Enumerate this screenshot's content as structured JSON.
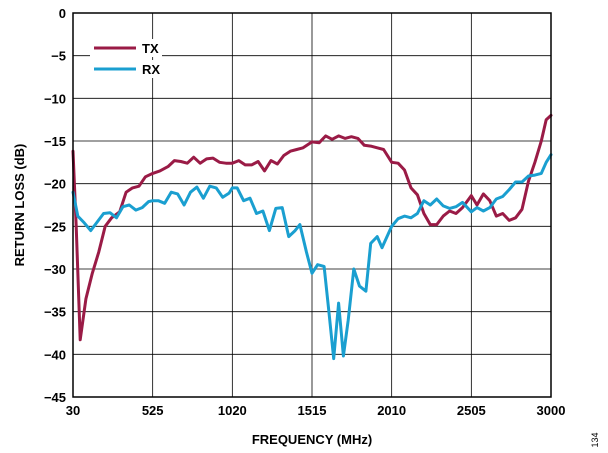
{
  "figure_id": "134",
  "chart_data": {
    "type": "line",
    "title": "",
    "xlabel": "FREQUENCY (MHz)",
    "ylabel": "RETURN LOSS (dB)",
    "xlim": [
      30,
      3000
    ],
    "ylim": [
      -45,
      0
    ],
    "x_ticks": [
      30,
      525,
      1020,
      1515,
      2010,
      2505,
      3000
    ],
    "y_ticks": [
      0,
      -5,
      -10,
      -15,
      -20,
      -25,
      -30,
      -35,
      -40,
      -45
    ],
    "grid": true,
    "legend_position": "top-left",
    "series": [
      {
        "name": "TX",
        "color": "#9a1b46",
        "points": [
          [
            30,
            -16.2
          ],
          [
            50,
            -25
          ],
          [
            75,
            -38.3
          ],
          [
            110,
            -33.5
          ],
          [
            150,
            -30.5
          ],
          [
            190,
            -28
          ],
          [
            230,
            -25
          ],
          [
            270,
            -24
          ],
          [
            320,
            -23.3
          ],
          [
            360,
            -21
          ],
          [
            400,
            -20.5
          ],
          [
            440,
            -20.3
          ],
          [
            480,
            -19.2
          ],
          [
            525,
            -18.8
          ],
          [
            570,
            -18.5
          ],
          [
            620,
            -18
          ],
          [
            660,
            -17.3
          ],
          [
            700,
            -17.4
          ],
          [
            740,
            -17.6
          ],
          [
            780,
            -16.9
          ],
          [
            820,
            -17.6
          ],
          [
            860,
            -17.1
          ],
          [
            900,
            -17
          ],
          [
            940,
            -17.5
          ],
          [
            980,
            -17.6
          ],
          [
            1020,
            -17.6
          ],
          [
            1060,
            -17.3
          ],
          [
            1100,
            -17.8
          ],
          [
            1140,
            -17.8
          ],
          [
            1180,
            -17.4
          ],
          [
            1220,
            -18.5
          ],
          [
            1260,
            -17.3
          ],
          [
            1300,
            -17.7
          ],
          [
            1340,
            -16.7
          ],
          [
            1380,
            -16.2
          ],
          [
            1420,
            -16
          ],
          [
            1460,
            -15.8
          ],
          [
            1515,
            -15.1
          ],
          [
            1560,
            -15.2
          ],
          [
            1600,
            -14.4
          ],
          [
            1640,
            -14.8
          ],
          [
            1680,
            -14.4
          ],
          [
            1720,
            -14.7
          ],
          [
            1760,
            -14.5
          ],
          [
            1800,
            -14.7
          ],
          [
            1840,
            -15.5
          ],
          [
            1880,
            -15.6
          ],
          [
            1920,
            -15.8
          ],
          [
            1960,
            -16
          ],
          [
            2010,
            -17.5
          ],
          [
            2050,
            -17.6
          ],
          [
            2090,
            -18.4
          ],
          [
            2130,
            -20.5
          ],
          [
            2170,
            -21.3
          ],
          [
            2210,
            -23.5
          ],
          [
            2250,
            -24.8
          ],
          [
            2290,
            -24.8
          ],
          [
            2330,
            -23.8
          ],
          [
            2370,
            -23.2
          ],
          [
            2410,
            -23.5
          ],
          [
            2450,
            -22.8
          ],
          [
            2505,
            -21.4
          ],
          [
            2540,
            -22.5
          ],
          [
            2580,
            -21.2
          ],
          [
            2620,
            -22
          ],
          [
            2660,
            -23.8
          ],
          [
            2700,
            -23.5
          ],
          [
            2740,
            -24.3
          ],
          [
            2780,
            -24
          ],
          [
            2820,
            -23
          ],
          [
            2860,
            -19.7
          ],
          [
            2900,
            -17.5
          ],
          [
            2940,
            -15
          ],
          [
            2970,
            -12.5
          ],
          [
            3000,
            -12
          ]
        ]
      },
      {
        "name": "RX",
        "color": "#1a9fd0",
        "points": [
          [
            30,
            -21
          ],
          [
            60,
            -23.8
          ],
          [
            100,
            -24.6
          ],
          [
            140,
            -25.5
          ],
          [
            180,
            -24.5
          ],
          [
            220,
            -23.5
          ],
          [
            260,
            -23.4
          ],
          [
            300,
            -24
          ],
          [
            340,
            -22.7
          ],
          [
            380,
            -22.5
          ],
          [
            420,
            -23.1
          ],
          [
            460,
            -22.8
          ],
          [
            500,
            -22.1
          ],
          [
            525,
            -22
          ],
          [
            560,
            -22
          ],
          [
            600,
            -22.3
          ],
          [
            640,
            -21
          ],
          [
            680,
            -21.2
          ],
          [
            720,
            -22.5
          ],
          [
            760,
            -21
          ],
          [
            800,
            -20.4
          ],
          [
            840,
            -21.7
          ],
          [
            880,
            -20.3
          ],
          [
            920,
            -20.5
          ],
          [
            960,
            -21.6
          ],
          [
            1000,
            -21.1
          ],
          [
            1020,
            -20.5
          ],
          [
            1050,
            -20.5
          ],
          [
            1090,
            -22
          ],
          [
            1130,
            -21.7
          ],
          [
            1170,
            -23.5
          ],
          [
            1210,
            -23.2
          ],
          [
            1250,
            -25.5
          ],
          [
            1290,
            -22.9
          ],
          [
            1330,
            -22.8
          ],
          [
            1370,
            -26.2
          ],
          [
            1410,
            -25.5
          ],
          [
            1440,
            -24.8
          ],
          [
            1480,
            -28
          ],
          [
            1515,
            -30.5
          ],
          [
            1550,
            -29.5
          ],
          [
            1590,
            -29.7
          ],
          [
            1620,
            -35
          ],
          [
            1650,
            -40.5
          ],
          [
            1680,
            -34
          ],
          [
            1710,
            -40.2
          ],
          [
            1740,
            -36
          ],
          [
            1775,
            -30
          ],
          [
            1810,
            -32
          ],
          [
            1850,
            -32.6
          ],
          [
            1880,
            -27
          ],
          [
            1920,
            -26.2
          ],
          [
            1950,
            -27.5
          ],
          [
            2010,
            -25
          ],
          [
            2050,
            -24.1
          ],
          [
            2090,
            -23.8
          ],
          [
            2130,
            -24
          ],
          [
            2170,
            -23.5
          ],
          [
            2210,
            -22
          ],
          [
            2250,
            -22.5
          ],
          [
            2290,
            -21.8
          ],
          [
            2330,
            -22.6
          ],
          [
            2370,
            -22.9
          ],
          [
            2410,
            -22.7
          ],
          [
            2450,
            -22.2
          ],
          [
            2505,
            -23.3
          ],
          [
            2540,
            -22.8
          ],
          [
            2580,
            -23.2
          ],
          [
            2620,
            -22.8
          ],
          [
            2660,
            -21.8
          ],
          [
            2700,
            -21.5
          ],
          [
            2740,
            -20.7
          ],
          [
            2780,
            -19.8
          ],
          [
            2820,
            -19.8
          ],
          [
            2860,
            -19.1
          ],
          [
            2900,
            -19
          ],
          [
            2940,
            -18.8
          ],
          [
            2970,
            -17.5
          ],
          [
            3000,
            -16.6
          ]
        ]
      }
    ]
  }
}
